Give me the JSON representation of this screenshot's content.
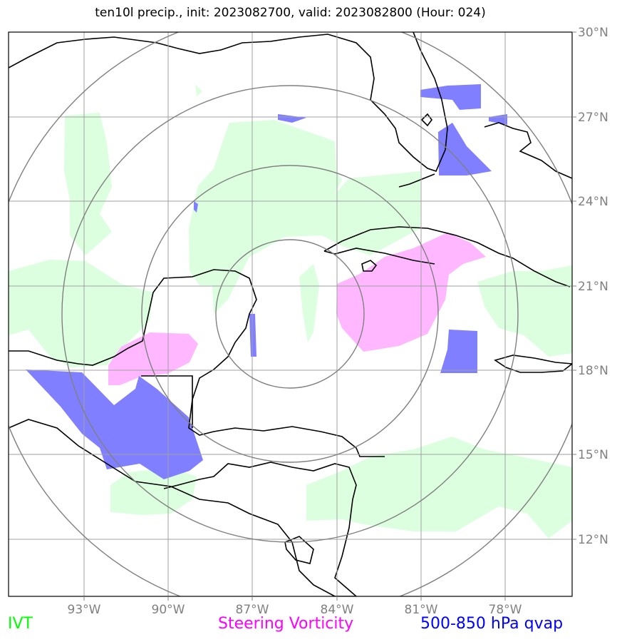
{
  "title": "ten10l precip., init: 2023082700, valid: 2023082800 (Hour: 024)",
  "colors": {
    "ivt": "#00ff00",
    "vorticity": "#ff00ff",
    "qvap": "#0000ff",
    "ivt_fill": "#dcffdf",
    "vort_fill": "#ffb8ff",
    "qvap_fill": "#7f7fff",
    "grid": "#a0a0a0",
    "rings": "#808080"
  },
  "axes": {
    "lon_ticks": [
      "93°W",
      "90°W",
      "87°W",
      "84°W",
      "81°W",
      "78°W"
    ],
    "lat_ticks": [
      "30°N",
      "27°N",
      "24°N",
      "21°N",
      "18°N",
      "15°N",
      "12°N"
    ]
  },
  "legend": {
    "ivt": "IVT",
    "vorticity": "Steering Vorticity",
    "qvap": "500-850 hPa qvap"
  }
}
